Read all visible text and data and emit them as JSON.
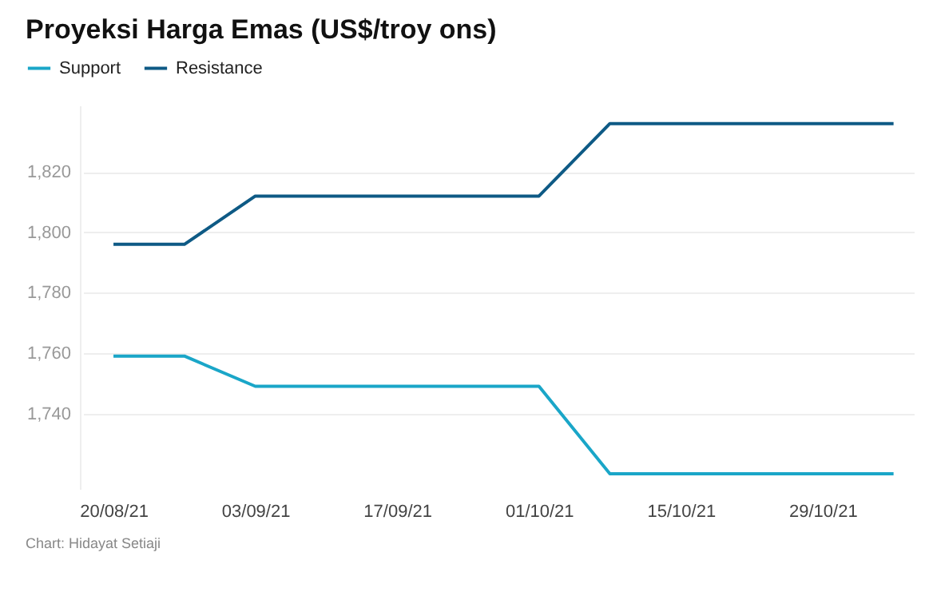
{
  "chart_data": {
    "type": "line",
    "title": "Proyeksi Harga Emas (US$/troy ons)",
    "x": [
      "--08-20",
      "--08-27",
      "--09-03",
      "--10-01",
      "--10-08",
      "--11-05"
    ],
    "series": [
      {
        "name": "Support",
        "color": "#1aa6c8",
        "values": [
          1759,
          1759,
          1749,
          1749,
          1720,
          1720
        ]
      },
      {
        "name": "Resistance",
        "color": "#0e5a85",
        "values": [
          1796,
          1796,
          1812,
          1812,
          1836,
          1836
        ]
      }
    ],
    "xlim": [
      "--08-17",
      "--11-07"
    ],
    "xticks": [
      {
        "value": "--08-20",
        "label": "20/08/21"
      },
      {
        "value": "--09-03",
        "label": "03/09/21"
      },
      {
        "value": "--09-17",
        "label": "17/09/21"
      },
      {
        "value": "--10-01",
        "label": "01/10/21"
      },
      {
        "value": "--10-15",
        "label": "15/10/21"
      },
      {
        "value": "--10-29",
        "label": "29/10/21"
      }
    ],
    "ylim": [
      1715,
      1842
    ],
    "yticks": [
      {
        "value": 1740,
        "label": "1,740"
      },
      {
        "value": 1760,
        "label": "1,760"
      },
      {
        "value": 1780,
        "label": "1,780"
      },
      {
        "value": 1800,
        "label": "1,800"
      },
      {
        "value": 1820,
        "label": "1,820"
      }
    ],
    "grid": "y",
    "legend": "top left",
    "marker": "none",
    "line_style": "solid",
    "annotations": [
      "Chart: Hidayat Setiaji"
    ]
  }
}
